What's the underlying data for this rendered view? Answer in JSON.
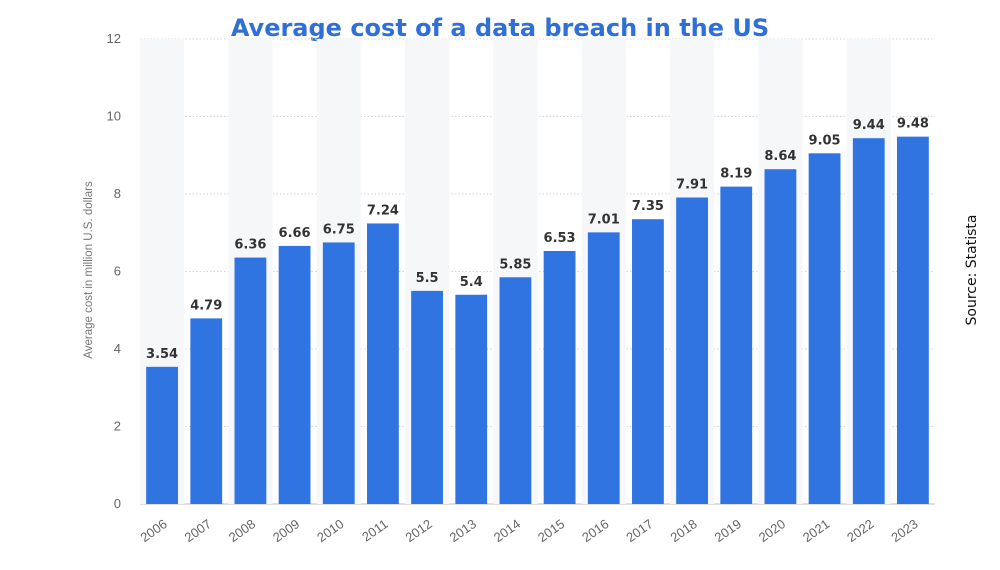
{
  "chart_data": {
    "type": "bar",
    "title": "Average cost of a data breach in the US",
    "ylabel": "Average cost in million U.S. dollars",
    "xlabel": "",
    "source": "Source: Statista",
    "categories": [
      "2006",
      "2007",
      "2008",
      "2009",
      "2010",
      "2011",
      "2012",
      "2013",
      "2014",
      "2015",
      "2016",
      "2017",
      "2018",
      "2019",
      "2020",
      "2021",
      "2022",
      "2023"
    ],
    "values": [
      3.54,
      4.79,
      6.36,
      6.66,
      6.75,
      7.24,
      5.5,
      5.4,
      5.85,
      6.53,
      7.01,
      7.35,
      7.91,
      8.19,
      8.64,
      9.05,
      9.44,
      9.48
    ],
    "value_labels": [
      "3.54",
      "4.79",
      "6.36",
      "6.66",
      "6.75",
      "7.24",
      "5.5",
      "5.4",
      "5.85",
      "6.53",
      "7.01",
      "7.35",
      "7.91",
      "8.19",
      "8.64",
      "9.05",
      "9.44",
      "9.48"
    ],
    "ylim": [
      0,
      12
    ],
    "yticks": [
      "0",
      "2",
      "4",
      "6",
      "8",
      "10",
      "12"
    ],
    "grid": true,
    "bar_color": "#2f74e0",
    "title_color": "#2f6fd6"
  }
}
